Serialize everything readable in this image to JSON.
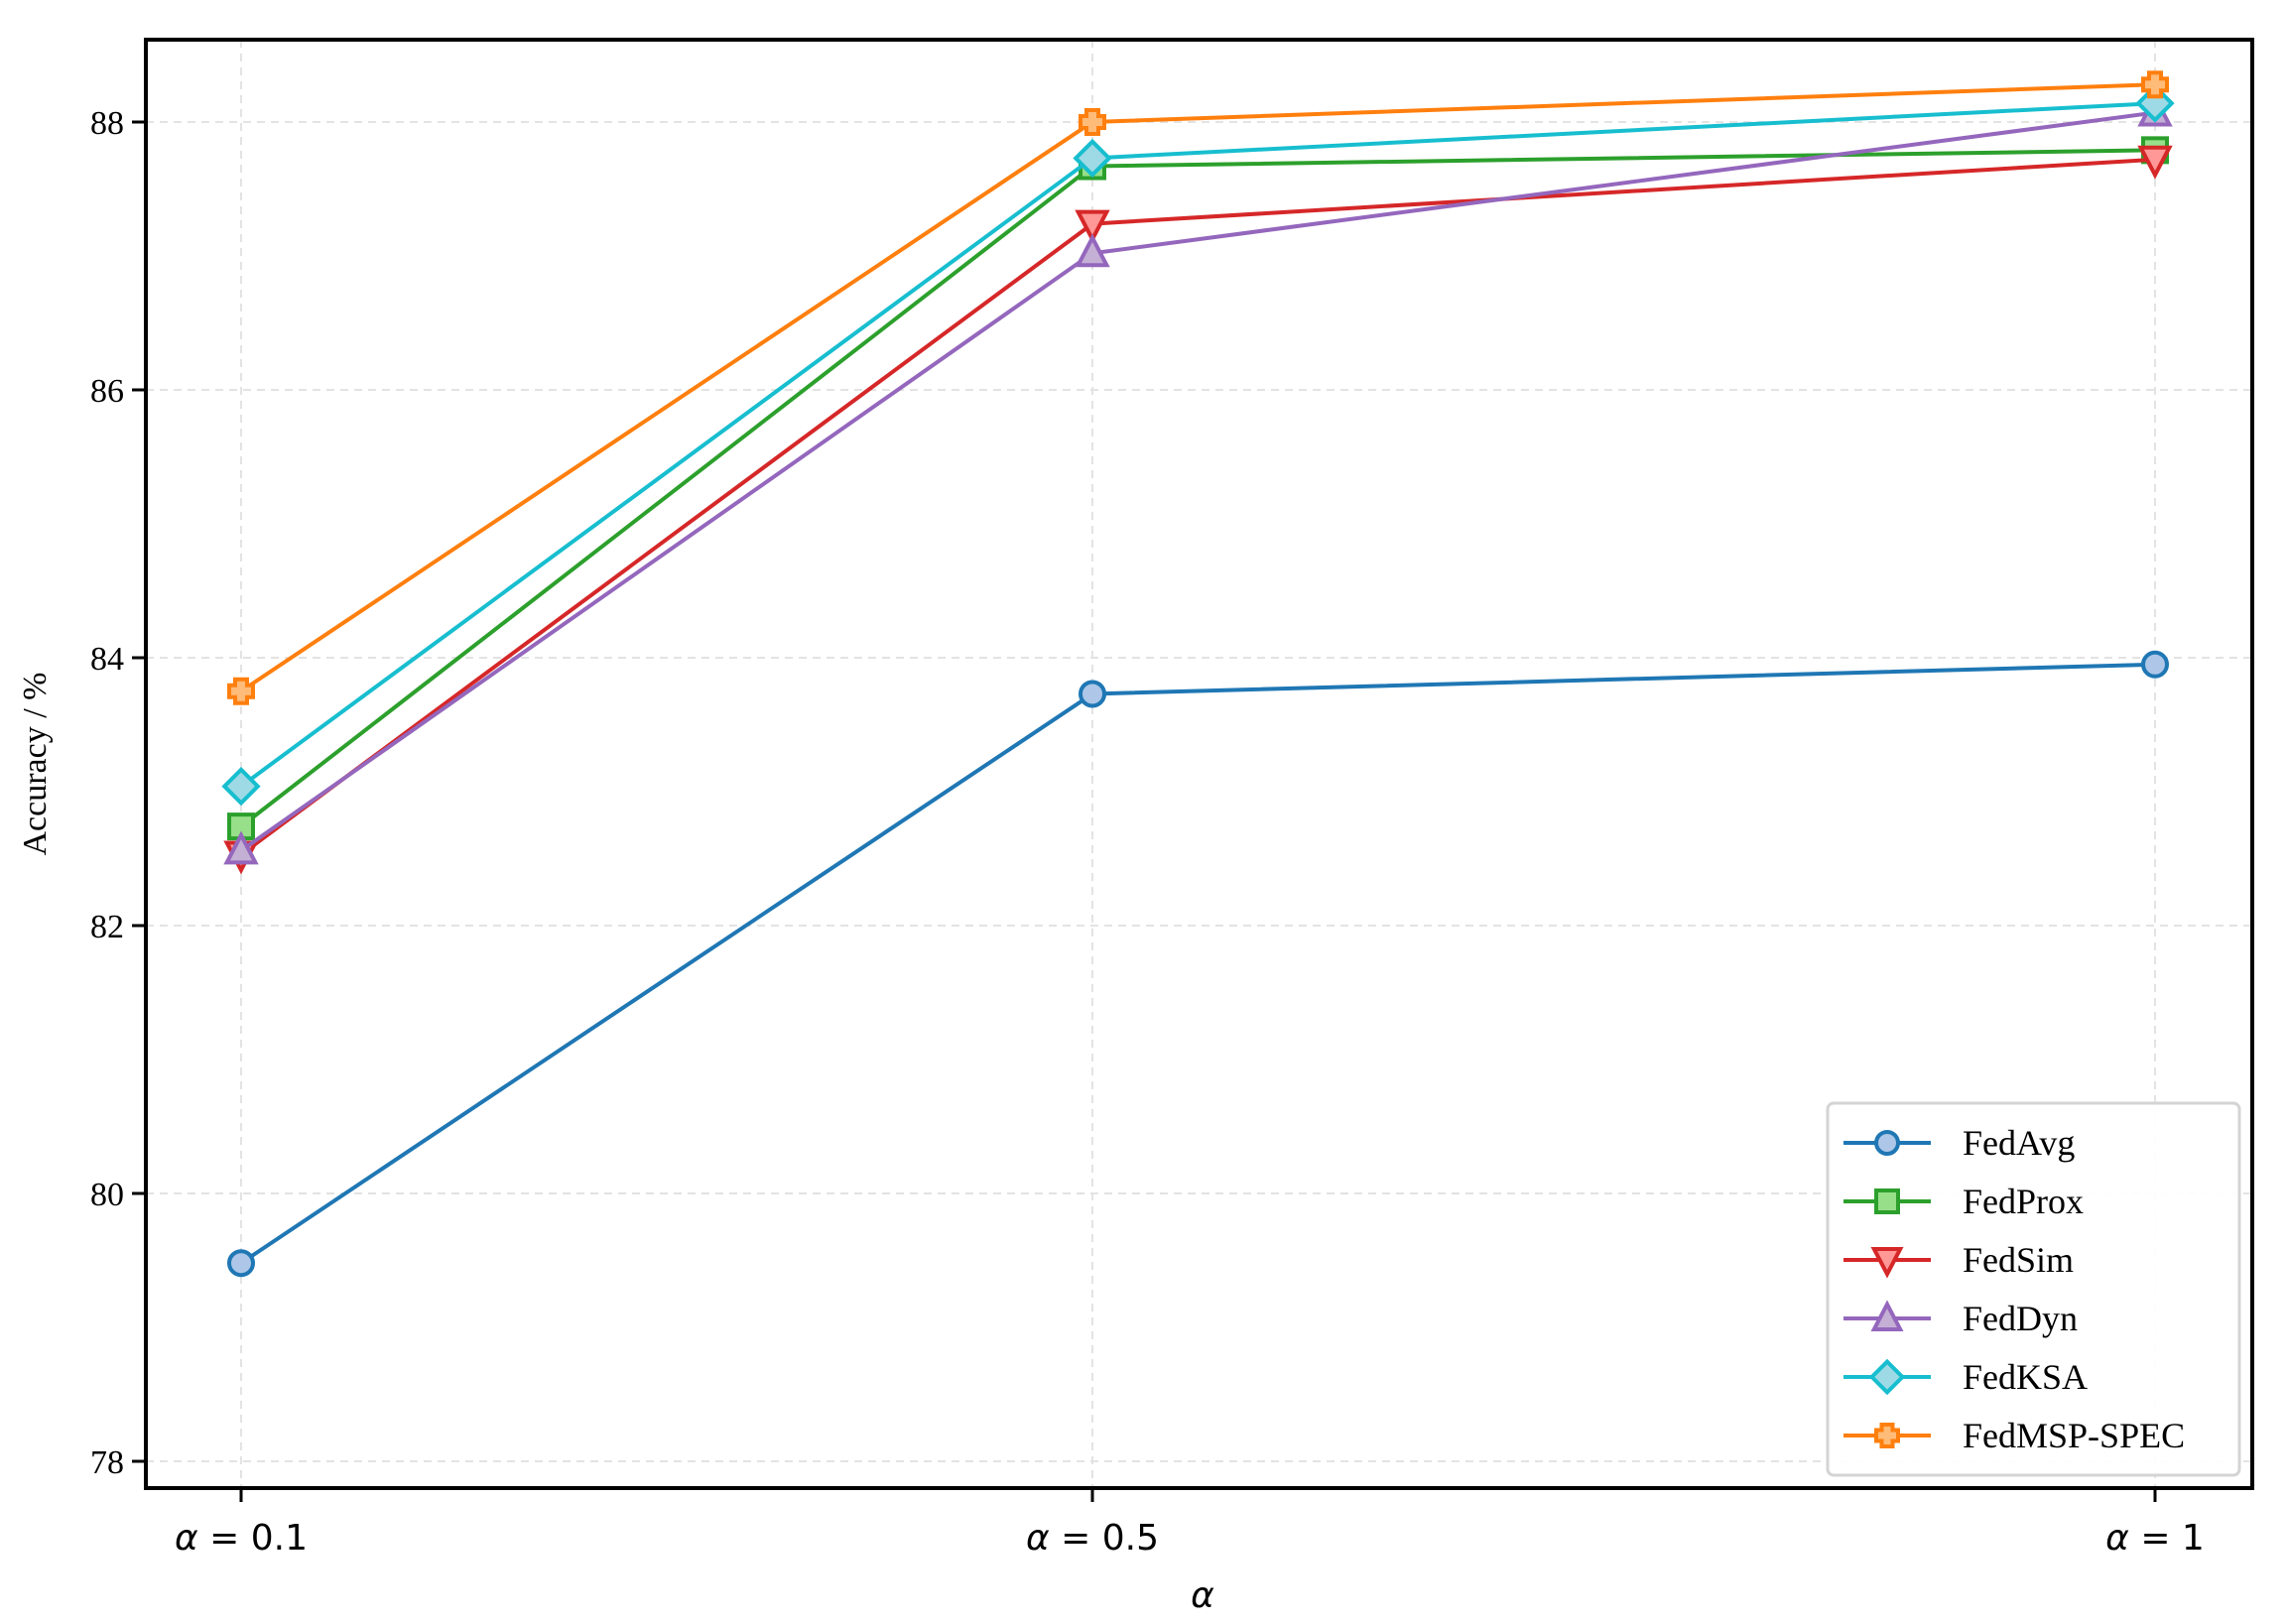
{
  "chart_data": {
    "type": "line",
    "title": "",
    "xlabel": "α",
    "ylabel": "Accuracy / %",
    "categories": [
      "α = 0.1",
      "α = 0.5",
      "α = 1"
    ],
    "x_symbol": "α",
    "x_values": [
      "0.1",
      "0.5",
      "1"
    ],
    "ylim": [
      77.8,
      88.6
    ],
    "yticks": [
      78,
      80,
      82,
      84,
      86,
      88
    ],
    "grid": true,
    "legend_position": "lower right",
    "series": [
      {
        "name": "FedAvg",
        "marker": "circle",
        "color": "#1f77b4",
        "fill": "#aec7e8",
        "values": [
          79.48,
          83.73,
          83.95
        ]
      },
      {
        "name": "FedProx",
        "marker": "square",
        "color": "#2ca02c",
        "fill": "#98df8a",
        "values": [
          82.74,
          87.67,
          87.79
        ]
      },
      {
        "name": "FedSim",
        "marker": "triangle-down",
        "color": "#d62728",
        "fill": "#ff9896",
        "values": [
          82.53,
          87.24,
          87.72
        ]
      },
      {
        "name": "FedDyn",
        "marker": "triangle-up",
        "color": "#9467bd",
        "fill": "#c5b0d5",
        "values": [
          82.56,
          87.02,
          88.07
        ]
      },
      {
        "name": "FedKSA",
        "marker": "diamond",
        "color": "#17becf",
        "fill": "#9edae5",
        "values": [
          83.04,
          87.73,
          88.14
        ]
      },
      {
        "name": "FedMSP-SPEC",
        "marker": "plus",
        "color": "#ff7f0e",
        "fill": "#ffbb78",
        "values": [
          83.75,
          88.0,
          88.28
        ]
      }
    ]
  }
}
